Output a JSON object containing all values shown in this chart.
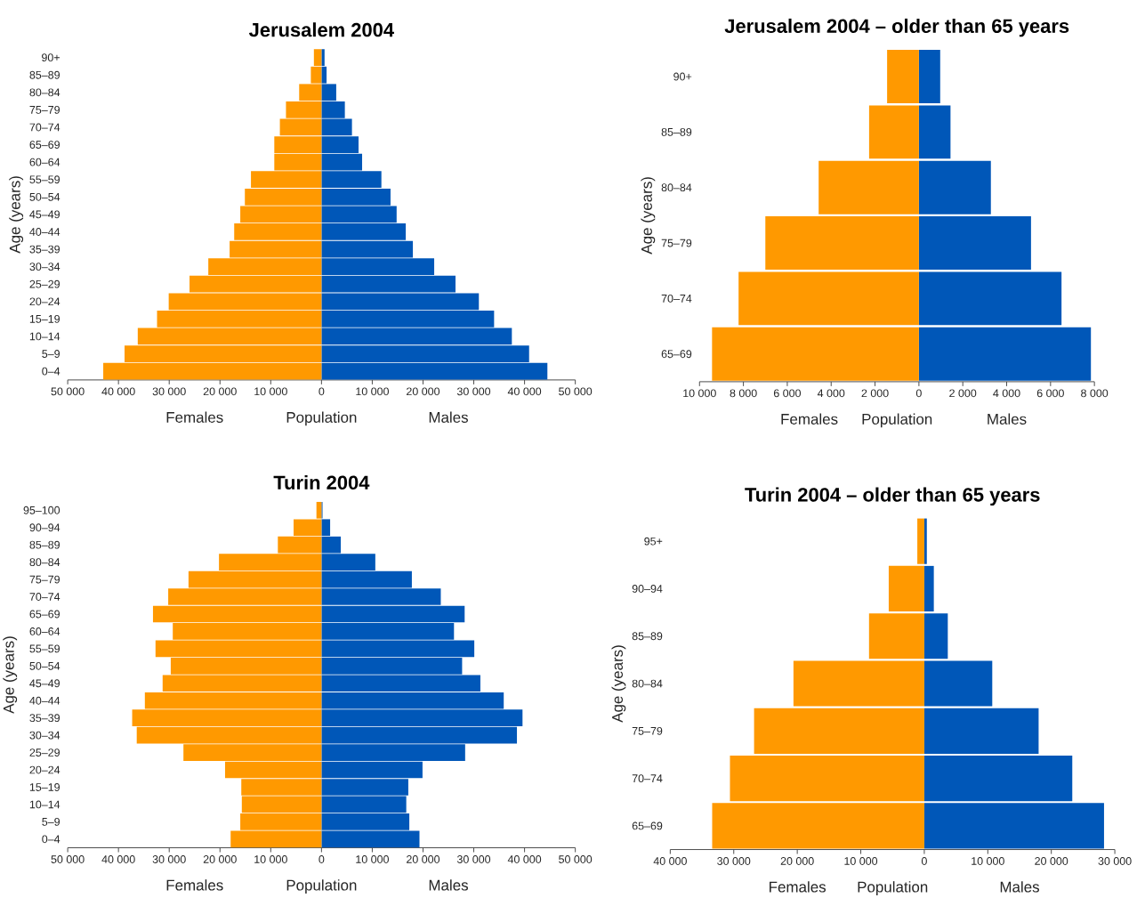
{
  "chart_data": [
    {
      "type": "bar",
      "orientation": "horizontal",
      "stacked": true,
      "title": "Jerusalem 2004",
      "xlabel": "Population",
      "ylabel": "Age (years)",
      "categories": [
        "90+",
        "85–89",
        "80–84",
        "75–79",
        "70–74",
        "65–69",
        "60–64",
        "55–59",
        "50–54",
        "45–49",
        "40–44",
        "35–39",
        "30–34",
        "25–29",
        "20–24",
        "15–19",
        "10–14",
        "5–9",
        "0–4"
      ],
      "series": [
        {
          "name": "Females",
          "color": "#ff9900",
          "values": [
            -1500,
            -2100,
            -4400,
            -7000,
            -8200,
            -9300,
            -9300,
            -13900,
            -15100,
            -16000,
            -17200,
            -18100,
            -22300,
            -26000,
            -30100,
            -32400,
            -36200,
            -38800,
            -43000
          ]
        },
        {
          "name": "Males",
          "color": "#0057b8",
          "values": [
            600,
            1000,
            2900,
            4600,
            6000,
            7300,
            8000,
            11800,
            13600,
            14800,
            16600,
            18000,
            22200,
            26400,
            31000,
            34000,
            37500,
            40900,
            44500
          ]
        }
      ],
      "xlim": [
        -50000,
        50000
      ],
      "xticks": [
        {
          "value": -50000,
          "label": "50 000"
        },
        {
          "value": -40000,
          "label": "40 000"
        },
        {
          "value": -30000,
          "label": "30 000"
        },
        {
          "value": -20000,
          "label": "20 000"
        },
        {
          "value": -10000,
          "label": "10 000"
        },
        0,
        {
          "value": 10000,
          "label": "10 000"
        },
        {
          "value": 20000,
          "label": "20 000"
        },
        {
          "value": 30000,
          "label": "30 000"
        },
        {
          "value": 40000,
          "label": "40 000"
        },
        {
          "value": 50000,
          "label": "50 000"
        }
      ]
    },
    {
      "type": "bar",
      "orientation": "horizontal",
      "stacked": true,
      "title": "Jerusalem 2004 – older than 65 years",
      "xlabel": "Population",
      "ylabel": "Age (years)",
      "categories": [
        "90+",
        "85–89",
        "80–84",
        "75–79",
        "70–74",
        "65–69"
      ],
      "series": [
        {
          "name": "Females",
          "color": "#ff9900",
          "values": [
            -1450,
            -2270,
            -4570,
            -7000,
            -8220,
            -9430
          ]
        },
        {
          "name": "Males",
          "color": "#0057b8",
          "values": [
            970,
            1440,
            3280,
            5110,
            6500,
            7840
          ]
        }
      ],
      "xlim": [
        -10000,
        8000
      ],
      "xticks": [
        {
          "value": -10000,
          "label": "10 000"
        },
        {
          "value": -8000,
          "label": "8 000"
        },
        {
          "value": -6000,
          "label": "6 000"
        },
        {
          "value": -4000,
          "label": "4 000"
        },
        {
          "value": -2000,
          "label": "2 000"
        },
        0,
        {
          "value": 2000,
          "label": "2 000"
        },
        {
          "value": 4000,
          "label": "4 000"
        },
        {
          "value": 6000,
          "label": "6 000"
        },
        {
          "value": 8000,
          "label": "8 000"
        }
      ]
    },
    {
      "type": "bar",
      "orientation": "horizontal",
      "stacked": true,
      "title": "Turin 2004",
      "xlabel": "Population",
      "ylabel": "Age (years)",
      "categories": [
        "95–100",
        "90–94",
        "85–89",
        "80–84",
        "75–79",
        "70–74",
        "65–69",
        "60–64",
        "55–59",
        "50–54",
        "45–49",
        "40–44",
        "35–39",
        "30–34",
        "25–29",
        "20–24",
        "15–19",
        "10–14",
        "5–9",
        "0–4"
      ],
      "series": [
        {
          "name": "Females",
          "color": "#ff9900",
          "values": [
            -1000,
            -5500,
            -8600,
            -20200,
            -26200,
            -30200,
            -33200,
            -29300,
            -32700,
            -29700,
            -31300,
            -34800,
            -37300,
            -36400,
            -27200,
            -19000,
            -15800,
            -15700,
            -16000,
            -17900
          ]
        },
        {
          "name": "Males",
          "color": "#0057b8",
          "values": [
            200,
            1700,
            3800,
            10600,
            17800,
            23500,
            28200,
            26100,
            30100,
            27700,
            31300,
            35900,
            39600,
            38500,
            28300,
            19900,
            17100,
            16700,
            17300,
            19300
          ]
        }
      ],
      "xlim": [
        -50000,
        50000
      ],
      "xticks": [
        {
          "value": -50000,
          "label": "50 000"
        },
        {
          "value": -40000,
          "label": "40 000"
        },
        {
          "value": -30000,
          "label": "30 000"
        },
        {
          "value": -20000,
          "label": "20 000"
        },
        {
          "value": -10000,
          "label": "10 000"
        },
        0,
        {
          "value": 10000,
          "label": "10 000"
        },
        {
          "value": 20000,
          "label": "20 000"
        },
        {
          "value": 30000,
          "label": "30 000"
        },
        {
          "value": 40000,
          "label": "40 000"
        },
        {
          "value": 50000,
          "label": "50 000"
        }
      ]
    },
    {
      "type": "bar",
      "orientation": "horizontal",
      "stacked": true,
      "title": "Turin 2004 – older than 65 years",
      "xlabel": "Population",
      "ylabel": "Age (years)",
      "categories": [
        "95+",
        "90–94",
        "85–89",
        "80–84",
        "75–79",
        "70–74",
        "65–69"
      ],
      "series": [
        {
          "name": "Females",
          "color": "#ff9900",
          "values": [
            -1100,
            -5600,
            -8700,
            -20600,
            -26800,
            -30600,
            -33400
          ]
        },
        {
          "name": "Males",
          "color": "#0057b8",
          "values": [
            400,
            1500,
            3700,
            10700,
            18000,
            23300,
            28300
          ]
        }
      ],
      "xlim": [
        -40000,
        30000
      ],
      "xticks": [
        {
          "value": -40000,
          "label": "40 000"
        },
        {
          "value": -30000,
          "label": "30 000"
        },
        {
          "value": -20000,
          "label": "20 000"
        },
        {
          "value": -10000,
          "label": "10 000"
        },
        0,
        {
          "value": 10000,
          "label": "10 000"
        },
        {
          "value": 20000,
          "label": "20 000"
        },
        {
          "value": 30000,
          "label": "30 000"
        }
      ]
    }
  ]
}
